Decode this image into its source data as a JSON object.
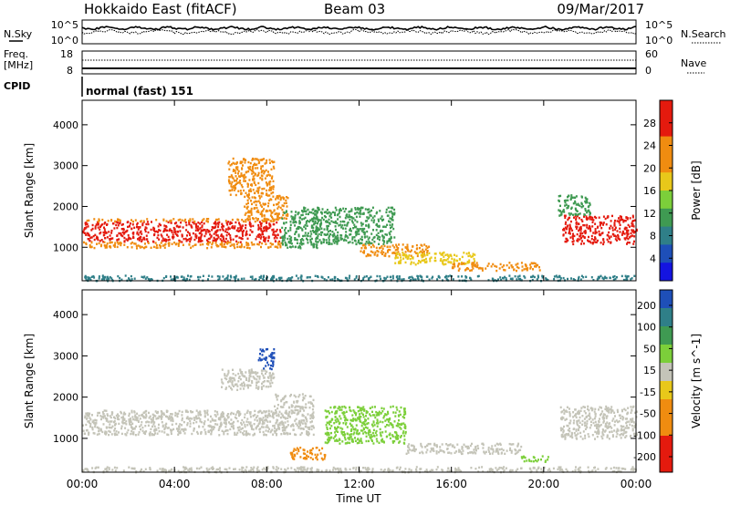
{
  "header": {
    "title": "Hokkaido East (fitACF)",
    "beam": "Beam 03",
    "date": "09/Mar/2017"
  },
  "mode_label": "normal (fast) 151",
  "colors": {
    "red": "#e41a0e",
    "orange": "#f08c10",
    "yellow": "#e8c81a",
    "lgreen": "#7ccf3a",
    "green": "#3f9a52",
    "teal": "#2f7f88",
    "blue": "#1e4fb8",
    "blue2": "#1414e0",
    "gray": "#c4c4b8"
  },
  "top_panels": {
    "nsky_label": "N.Sky",
    "nsky_ticks": [
      "10^5",
      "10^0"
    ],
    "nsearch_label": "N.Search",
    "nsearch_ticks": [
      "10^5",
      "10^0"
    ],
    "freq_label_1": "Freq.",
    "freq_label_2": "[MHz]",
    "freq_ticks": [
      "18",
      "8"
    ],
    "nave_label": "Nave",
    "nave_ticks": [
      "60",
      "0"
    ],
    "cpid_label": "CPID"
  },
  "chart_data": [
    {
      "type": "heatmap",
      "name": "power",
      "ylabel": "Slant Range [km]",
      "xlabel": "Time UT",
      "x_ticks": [
        "00:00",
        "04:00",
        "08:00",
        "12:00",
        "16:00",
        "20:00",
        "00:00"
      ],
      "y_ticks": [
        "1000",
        "2000",
        "3000",
        "4000"
      ],
      "ylim": [
        180,
        4600
      ],
      "colorbar": {
        "label": "Power [dB]",
        "ticks": [
          "4",
          "8",
          "12",
          "16",
          "20",
          "24",
          "28"
        ],
        "range": [
          0,
          32
        ]
      },
      "regions": [
        {
          "t": [
            0.0,
            8.6
          ],
          "r": [
            1150,
            1650
          ],
          "color": "red"
        },
        {
          "t": [
            0.0,
            8.6
          ],
          "r": [
            1650,
            1720
          ],
          "color": "orange"
        },
        {
          "t": [
            0.0,
            8.6
          ],
          "r": [
            1000,
            1150
          ],
          "color": "orange"
        },
        {
          "t": [
            6.3,
            8.3
          ],
          "r": [
            2300,
            3200
          ],
          "color": "orange"
        },
        {
          "t": [
            7.0,
            8.9
          ],
          "r": [
            1700,
            2300
          ],
          "color": "orange"
        },
        {
          "t": [
            8.6,
            10.2
          ],
          "r": [
            1000,
            2000
          ],
          "color": "green"
        },
        {
          "t": [
            10.0,
            13.5
          ],
          "r": [
            1100,
            2000
          ],
          "color": "green"
        },
        {
          "t": [
            12.0,
            15.0
          ],
          "r": [
            800,
            1100
          ],
          "color": "orange"
        },
        {
          "t": [
            13.5,
            17.0
          ],
          "r": [
            600,
            900
          ],
          "color": "yellow"
        },
        {
          "t": [
            16.0,
            19.8
          ],
          "r": [
            450,
            650
          ],
          "color": "orange"
        },
        {
          "t": [
            20.8,
            24.0
          ],
          "r": [
            1100,
            1800
          ],
          "color": "red"
        },
        {
          "t": [
            20.6,
            22.0
          ],
          "r": [
            1800,
            2300
          ],
          "color": "green"
        },
        {
          "t": [
            0.0,
            24.0
          ],
          "r": [
            200,
            330
          ],
          "color": "teal"
        }
      ]
    },
    {
      "type": "heatmap",
      "name": "velocity",
      "ylabel": "Slant Range [km]",
      "xlabel": "Time UT",
      "x_ticks": [
        "00:00",
        "04:00",
        "08:00",
        "12:00",
        "16:00",
        "20:00",
        "00:00"
      ],
      "y_ticks": [
        "1000",
        "2000",
        "3000",
        "4000"
      ],
      "ylim": [
        180,
        4600
      ],
      "colorbar": {
        "label": "Velocity [m s^-1]",
        "ticks": [
          "200",
          "100",
          "50",
          "15",
          "-15",
          "-50",
          "-100",
          "-200"
        ],
        "range": [
          -250,
          250
        ]
      },
      "regions": [
        {
          "t": [
            0.0,
            8.6
          ],
          "r": [
            1100,
            1700
          ],
          "color": "gray"
        },
        {
          "t": [
            7.6,
            8.3
          ],
          "r": [
            2700,
            3200
          ],
          "color": "blue"
        },
        {
          "t": [
            6.0,
            8.3
          ],
          "r": [
            2200,
            2700
          ],
          "color": "gray"
        },
        {
          "t": [
            8.3,
            10.0
          ],
          "r": [
            1100,
            2100
          ],
          "color": "gray"
        },
        {
          "t": [
            9.0,
            10.5
          ],
          "r": [
            500,
            800
          ],
          "color": "orange"
        },
        {
          "t": [
            10.5,
            14.0
          ],
          "r": [
            900,
            1800
          ],
          "color": "lgreen"
        },
        {
          "t": [
            14.0,
            19.0
          ],
          "r": [
            650,
            900
          ],
          "color": "gray"
        },
        {
          "t": [
            19.0,
            20.2
          ],
          "r": [
            450,
            600
          ],
          "color": "lgreen"
        },
        {
          "t": [
            20.7,
            24.0
          ],
          "r": [
            1000,
            1800
          ],
          "color": "gray"
        },
        {
          "t": [
            0.0,
            24.0
          ],
          "r": [
            200,
            330
          ],
          "color": "gray"
        }
      ]
    }
  ]
}
